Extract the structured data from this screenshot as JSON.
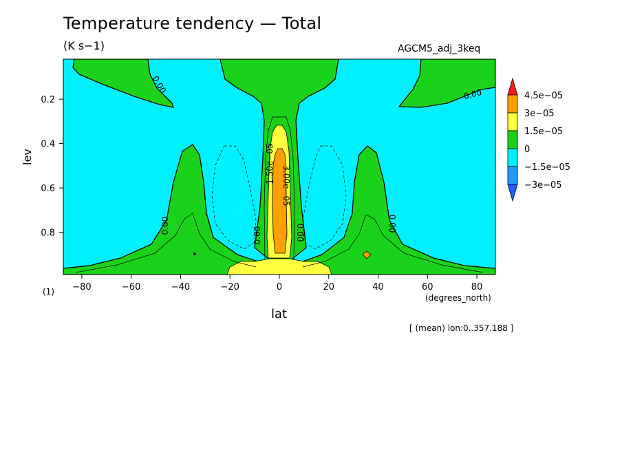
{
  "chart_data": {
    "type": "heatmap",
    "title": "Temperature tendency — Total",
    "units": "(K s−1)",
    "model_label": "AGCM5_adj_3keq",
    "xlabel": "lat",
    "ylabel": "lev",
    "x_units": "(degrees_north)",
    "panel_tag": "(1)",
    "mean_note": "[ (mean) lon:0..357.188 ]",
    "xlim": [
      -87.5,
      87.5
    ],
    "ylim": [
      0.02,
      0.99
    ],
    "y_inverted": true,
    "x_ticks": [
      -80,
      -60,
      -40,
      -20,
      0,
      20,
      40,
      60,
      80
    ],
    "x_tick_labels": [
      "−80",
      "−60",
      "−40",
      "−20",
      "0",
      "20",
      "40",
      "60",
      "80"
    ],
    "y_ticks": [
      0.2,
      0.4,
      0.6,
      0.8
    ],
    "y_tick_labels": [
      "0.2",
      "0.4",
      "0.6",
      "0.8"
    ],
    "contour_labels": [
      "0.00",
      "0.00",
      "0.00",
      "0.00",
      "0.00",
      "0.00",
      "1.50e−05",
      "3.00e−05"
    ],
    "colorbar": {
      "levels": [
        "4.5e−05",
        "3e−05",
        "1.5e−05",
        "0",
        "−1.5e−05",
        "−3e−05"
      ],
      "colors": [
        "#ff1a1a",
        "#ffa000",
        "#ffff40",
        "#1ad21a",
        "#00f0ff",
        "#1e9bff",
        "#1e5fff"
      ]
    },
    "regions": {
      "negative_fill": "#00f0ff",
      "positive_fill": "#1ad21a",
      "high_fill": "#ffff40",
      "peak_fill": "#ffa000"
    }
  }
}
